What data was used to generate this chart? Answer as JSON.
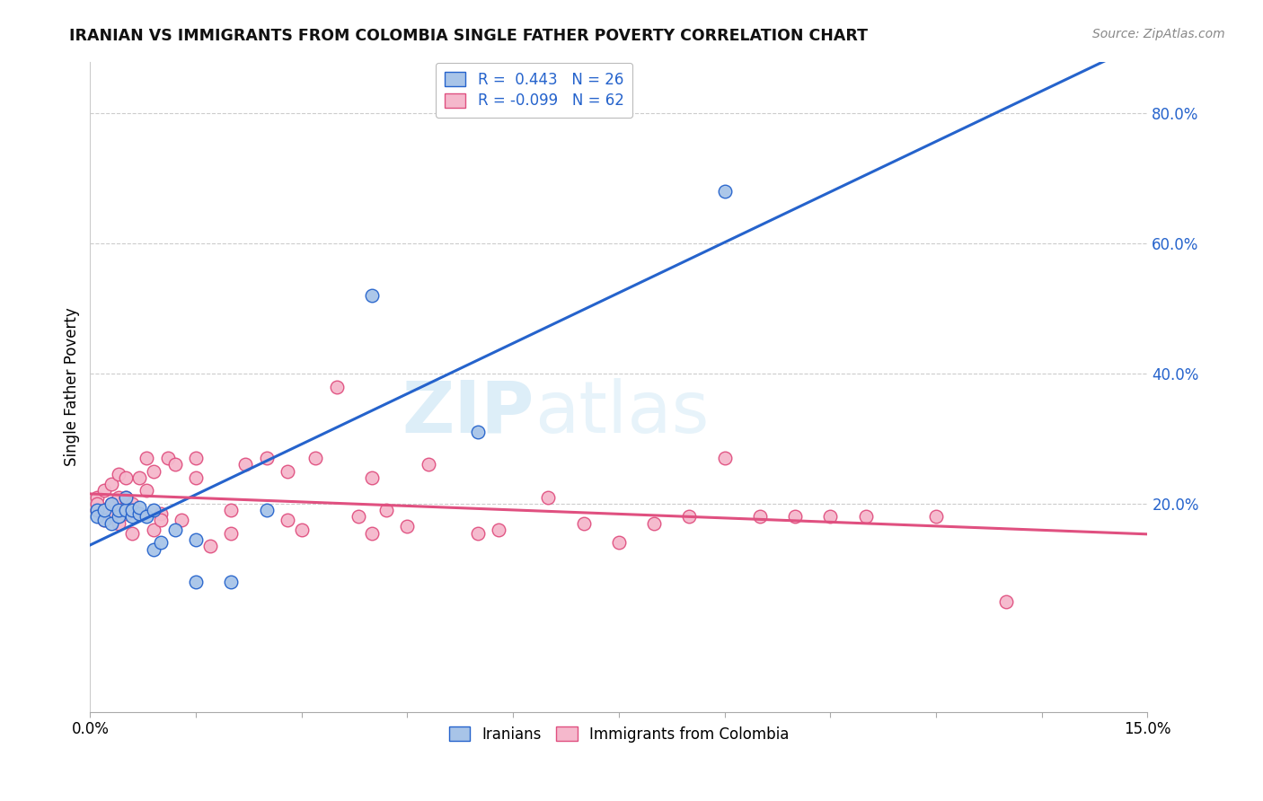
{
  "title": "IRANIAN VS IMMIGRANTS FROM COLOMBIA SINGLE FATHER POVERTY CORRELATION CHART",
  "source": "Source: ZipAtlas.com",
  "ylabel": "Single Father Poverty",
  "legend_iranians": "Iranians",
  "legend_colombia": "Immigrants from Colombia",
  "r_iranians": 0.443,
  "n_iranians": 26,
  "r_colombia": -0.099,
  "n_colombia": 62,
  "color_iranians": "#a8c4e8",
  "color_colombia": "#f5b8cc",
  "color_line_iranians": "#2563cc",
  "color_line_colombia": "#e05080",
  "watermark_color": "#ddeef8",
  "background_color": "#ffffff",
  "xlim": [
    0.0,
    0.15
  ],
  "ylim": [
    -0.12,
    0.88
  ],
  "y_ticks": [
    0.2,
    0.4,
    0.6,
    0.8
  ],
  "y_tick_labels": [
    "20.0%",
    "40.0%",
    "60.0%",
    "80.0%"
  ],
  "x_tick_labels_pos": [
    0.0,
    0.15
  ],
  "x_tick_labels": [
    "0.0%",
    "15.0%"
  ],
  "iranians_x": [
    0.001,
    0.001,
    0.002,
    0.002,
    0.003,
    0.003,
    0.004,
    0.004,
    0.005,
    0.005,
    0.006,
    0.006,
    0.007,
    0.007,
    0.008,
    0.009,
    0.009,
    0.01,
    0.012,
    0.015,
    0.015,
    0.02,
    0.025,
    0.04,
    0.055,
    0.09
  ],
  "iranians_y": [
    0.19,
    0.18,
    0.175,
    0.19,
    0.17,
    0.2,
    0.18,
    0.19,
    0.19,
    0.21,
    0.18,
    0.19,
    0.185,
    0.195,
    0.18,
    0.13,
    0.19,
    0.14,
    0.16,
    0.145,
    0.08,
    0.08,
    0.19,
    0.52,
    0.31,
    0.68
  ],
  "colombia_x": [
    0.001,
    0.001,
    0.001,
    0.002,
    0.002,
    0.002,
    0.003,
    0.003,
    0.003,
    0.004,
    0.004,
    0.004,
    0.005,
    0.005,
    0.005,
    0.005,
    0.006,
    0.006,
    0.006,
    0.007,
    0.007,
    0.008,
    0.008,
    0.009,
    0.009,
    0.01,
    0.01,
    0.011,
    0.012,
    0.013,
    0.015,
    0.015,
    0.017,
    0.02,
    0.02,
    0.022,
    0.025,
    0.028,
    0.028,
    0.03,
    0.032,
    0.035,
    0.038,
    0.04,
    0.04,
    0.042,
    0.045,
    0.048,
    0.055,
    0.058,
    0.065,
    0.07,
    0.075,
    0.08,
    0.085,
    0.09,
    0.095,
    0.1,
    0.105,
    0.11,
    0.12,
    0.13
  ],
  "colombia_y": [
    0.19,
    0.21,
    0.2,
    0.175,
    0.22,
    0.19,
    0.2,
    0.23,
    0.18,
    0.17,
    0.21,
    0.245,
    0.185,
    0.195,
    0.24,
    0.21,
    0.2,
    0.155,
    0.19,
    0.24,
    0.185,
    0.27,
    0.22,
    0.16,
    0.25,
    0.185,
    0.175,
    0.27,
    0.26,
    0.175,
    0.24,
    0.27,
    0.135,
    0.19,
    0.155,
    0.26,
    0.27,
    0.25,
    0.175,
    0.16,
    0.27,
    0.38,
    0.18,
    0.155,
    0.24,
    0.19,
    0.165,
    0.26,
    0.155,
    0.16,
    0.21,
    0.17,
    0.14,
    0.17,
    0.18,
    0.27,
    0.18,
    0.18,
    0.18,
    0.18,
    0.18,
    0.05
  ]
}
